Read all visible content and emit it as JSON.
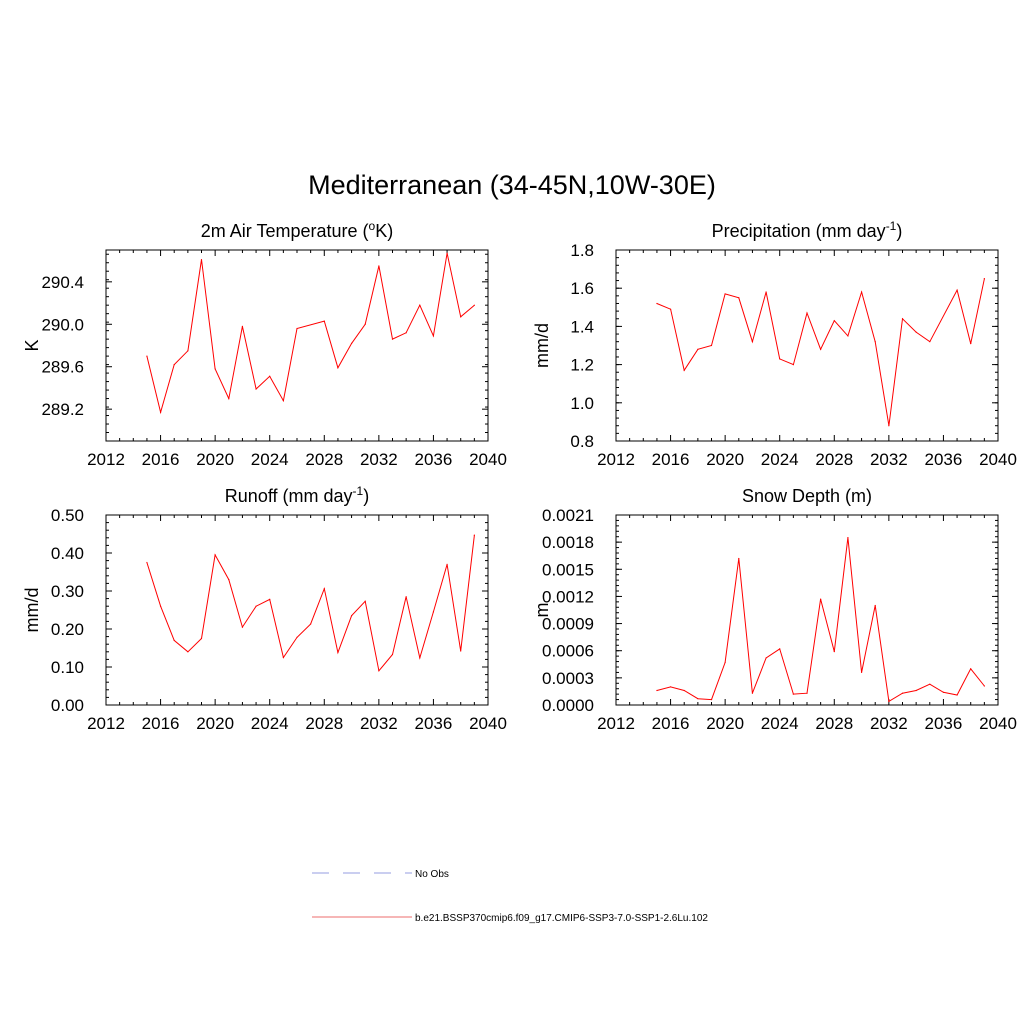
{
  "figure": {
    "title": "Mediterranean (34-45N,10W-30E)"
  },
  "legend": {
    "items": [
      {
        "label": "No Obs",
        "color": "#aab0e6",
        "dash": true
      },
      {
        "label": "b.e21.BSSP370cmip6.f09_g17.CMIP6-SSP3-7.0-SSP1-2.6Lu.102",
        "color": "#f08a8a",
        "dash": false
      }
    ]
  },
  "colors": {
    "series": "#ff0000",
    "axis": "#000000"
  },
  "chart_data": [
    {
      "type": "line",
      "title": "2m Air Temperature (",
      "title_sup": "o",
      "title_end": "K)",
      "xlabel": "",
      "ylabel": "K",
      "xlim": [
        2012,
        2040
      ],
      "ylim": [
        288.9,
        290.7
      ],
      "xticks": [
        2012,
        2016,
        2020,
        2024,
        2028,
        2032,
        2036,
        2040
      ],
      "xtick_labels": [
        "2012",
        "2016",
        "2020",
        "2024",
        "2028",
        "2032",
        "2036",
        "2040"
      ],
      "yticks": [
        289.2,
        289.6,
        290.0,
        290.4
      ],
      "ytick_labels": [
        "289.2",
        "289.6",
        "290.0",
        "290.4"
      ],
      "x": [
        2015,
        2016,
        2017,
        2018,
        2019,
        2020,
        2021,
        2022,
        2023,
        2024,
        2025,
        2026,
        2028,
        2029,
        2030,
        2031,
        2032,
        2033,
        2034,
        2035,
        2036,
        2037,
        2038,
        2039
      ],
      "y": [
        289.7,
        289.17,
        289.62,
        289.75,
        290.61,
        289.58,
        289.3,
        289.98,
        289.39,
        289.51,
        289.28,
        289.96,
        290.03,
        289.59,
        289.82,
        290.0,
        290.55,
        289.86,
        289.92,
        290.18,
        289.89,
        290.67,
        290.07,
        290.18
      ]
    },
    {
      "type": "line",
      "title": "Precipitation (mm day",
      "title_sup": "-1",
      "title_end": ")",
      "xlabel": "",
      "ylabel": "mm/d",
      "xlim": [
        2012,
        2040
      ],
      "ylim": [
        0.8,
        1.8
      ],
      "xticks": [
        2012,
        2016,
        2020,
        2024,
        2028,
        2032,
        2036,
        2040
      ],
      "xtick_labels": [
        "2012",
        "2016",
        "2020",
        "2024",
        "2028",
        "2032",
        "2036",
        "2040"
      ],
      "yticks": [
        0.8,
        1.0,
        1.2,
        1.4,
        1.6,
        1.8
      ],
      "ytick_labels": [
        "0.8",
        "1.0",
        "1.2",
        "1.4",
        "1.6",
        "1.8"
      ],
      "x": [
        2015,
        2016,
        2017,
        2018,
        2019,
        2020,
        2021,
        2022,
        2023,
        2024,
        2025,
        2026,
        2027,
        2028,
        2029,
        2030,
        2031,
        2032,
        2033,
        2034,
        2035,
        2037,
        2038,
        2039
      ],
      "y": [
        1.52,
        1.49,
        1.17,
        1.28,
        1.3,
        1.57,
        1.55,
        1.32,
        1.58,
        1.23,
        1.2,
        1.47,
        1.28,
        1.43,
        1.35,
        1.58,
        1.32,
        0.88,
        1.44,
        1.37,
        1.32,
        1.59,
        1.31,
        1.65
      ]
    },
    {
      "type": "line",
      "title": "Runoff (mm day",
      "title_sup": "-1",
      "title_end": ")",
      "xlabel": "",
      "ylabel": "mm/d",
      "xlim": [
        2012,
        2040
      ],
      "ylim": [
        0.0,
        0.5
      ],
      "xticks": [
        2012,
        2016,
        2020,
        2024,
        2028,
        2032,
        2036,
        2040
      ],
      "xtick_labels": [
        "2012",
        "2016",
        "2020",
        "2024",
        "2028",
        "2032",
        "2036",
        "2040"
      ],
      "yticks": [
        0.0,
        0.1,
        0.2,
        0.3,
        0.4,
        0.5
      ],
      "ytick_labels": [
        "0.00",
        "0.10",
        "0.20",
        "0.30",
        "0.40",
        "0.50"
      ],
      "x": [
        2015,
        2016,
        2017,
        2018,
        2019,
        2020,
        2021,
        2022,
        2023,
        2024,
        2025,
        2026,
        2027,
        2028,
        2029,
        2030,
        2031,
        2032,
        2033,
        2034,
        2035,
        2036,
        2037,
        2038,
        2039
      ],
      "y": [
        0.375,
        0.26,
        0.17,
        0.14,
        0.175,
        0.395,
        0.33,
        0.205,
        0.26,
        0.278,
        0.125,
        0.178,
        0.213,
        0.306,
        0.138,
        0.235,
        0.273,
        0.09,
        0.133,
        0.285,
        0.124,
        0.245,
        0.37,
        0.142,
        0.447
      ]
    },
    {
      "type": "line",
      "title": "Snow Depth (m)",
      "title_sup": "",
      "title_end": "",
      "xlabel": "",
      "ylabel": "m",
      "xlim": [
        2012,
        2040
      ],
      "ylim": [
        0.0,
        0.0021
      ],
      "xticks": [
        2012,
        2016,
        2020,
        2024,
        2028,
        2032,
        2036,
        2040
      ],
      "xtick_labels": [
        "2012",
        "2016",
        "2020",
        "2024",
        "2028",
        "2032",
        "2036",
        "2040"
      ],
      "yticks": [
        0.0,
        0.0003,
        0.0006,
        0.0009,
        0.0012,
        0.0015,
        0.0018,
        0.0021
      ],
      "ytick_labels": [
        "0.0000",
        "0.0003",
        "0.0006",
        "0.0009",
        "0.0012",
        "0.0015",
        "0.0018",
        "0.0021"
      ],
      "x": [
        2015,
        2016,
        2017,
        2018,
        2019,
        2020,
        2021,
        2022,
        2023,
        2024,
        2025,
        2026,
        2027,
        2028,
        2029,
        2030,
        2031,
        2032,
        2033,
        2034,
        2035,
        2036,
        2037,
        2038,
        2039
      ],
      "y": [
        0.00016,
        0.0002,
        0.00016,
        7e-05,
        6e-05,
        0.00047,
        0.00162,
        0.00013,
        0.00052,
        0.00062,
        0.00012,
        0.00013,
        0.00117,
        0.00059,
        0.00185,
        0.00036,
        0.0011,
        4e-05,
        0.00013,
        0.00016,
        0.00023,
        0.00014,
        0.00011,
        0.0004,
        0.00021
      ]
    }
  ]
}
